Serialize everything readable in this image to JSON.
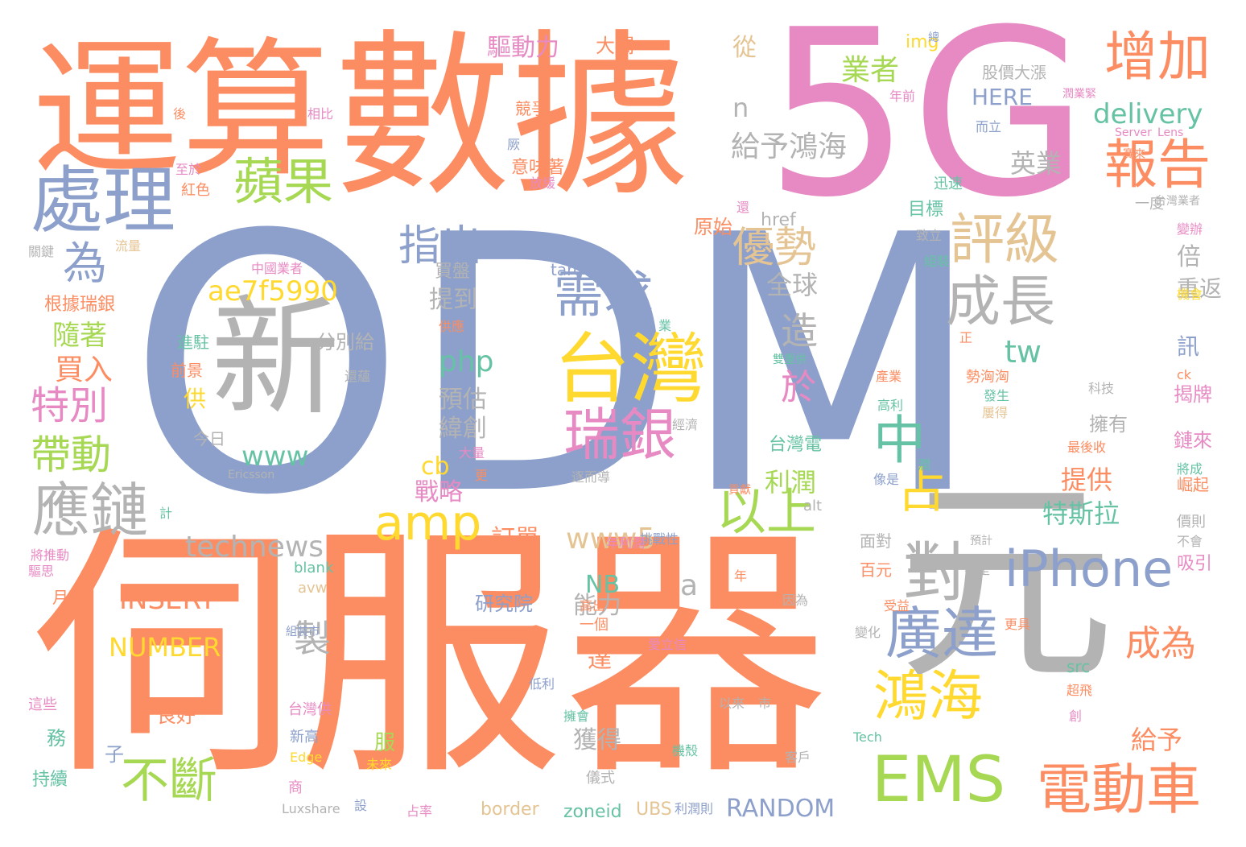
{
  "colors": {
    "background": "#ffffff",
    "orange": "#fc8d62",
    "blue": "#8da0cb",
    "pink": "#e78ac3",
    "green": "#a6d854",
    "yellow": "#ffd92f",
    "tan": "#e5c494",
    "gray": "#b3b3b3",
    "teal": "#66c2a5"
  },
  "words": [
    "ODM",
    "伺服器",
    "5G",
    "數據",
    "運算",
    "元",
    "新",
    "台灣",
    "處理",
    "瑞銀",
    "EMS",
    "電動車",
    "應鏈",
    "評級",
    "對",
    "蘋果",
    "增加",
    "報告",
    "需求",
    "廣達",
    "鴻海",
    "成長",
    "amp",
    "iPhone",
    "中",
    "占",
    "以上",
    "不斷",
    "為",
    "指出",
    "優勢",
    "帶動",
    "特別",
    "technews",
    "給予鴻海",
    "業者",
    "delivery",
    "成為",
    "ae7f5990",
    "www",
    "INSERT",
    "NUMBER",
    "RANDOM",
    "php",
    "www5",
    "造",
    "於",
    "tw",
    "製",
    "a",
    "n",
    "買入",
    "隨著",
    "全球",
    "英業",
    "利潤",
    "提供",
    "特斯拉",
    "驅動力",
    "NB",
    "cb",
    "戰略",
    "訂單",
    "能力",
    "緯創",
    "預估",
    "提到",
    "研究院",
    "達",
    "獲得",
    "給予",
    "倍",
    "重返",
    "訊",
    "揭牌",
    "鏈來",
    "擁有",
    "HERE",
    "股價大漲",
    "從",
    "大關",
    "img",
    "目標",
    "原始",
    "href",
    "target",
    "買盤",
    "分別給",
    "進駐",
    "前景",
    "供",
    "今日",
    "良好",
    "服",
    "子",
    "務",
    "持續",
    "根據瑞銀",
    "月",
    "競爭",
    "意味著",
    "紅色",
    "台灣電",
    "src",
    "border",
    "zoneid",
    "UBS",
    "Luxshare",
    "Tech",
    "blank",
    "avw",
    "alt",
    "百元",
    "面對",
    "一個",
    "儀式",
    "商",
    "新高",
    "台灣供",
    "Edge",
    "後",
    "相比",
    "厥",
    "至於",
    "放緩",
    "流量",
    "關鍵",
    "中國業者",
    "供應",
    "還蘊",
    "不會",
    "更",
    "大量",
    "Ericsson",
    "逐而導",
    "挑戰性",
    "年利潤",
    "年",
    "高出",
    "立訊",
    "低利",
    "擁會",
    "以來",
    "市",
    "客戶",
    "機殼",
    "未來",
    "占率",
    "設",
    "利潤則",
    "創",
    "超飛",
    "更具",
    "受益",
    "變化",
    "因為",
    "愛立信",
    "組裝市",
    "不是",
    "像是",
    "潤",
    "業",
    "發生",
    "經濟",
    "科技",
    "屢得",
    "最後收",
    "產業",
    "高利",
    "勢洶洶",
    "正",
    "雙重供",
    "致立",
    "組裝",
    "一度",
    "迅速",
    "還",
    "Server",
    "Lens",
    "賽來",
    "台灣業者",
    "而立",
    "年前",
    "潤業緊",
    "總",
    "崛起",
    "吸引",
    "價則",
    "機會",
    "變辦",
    "將成",
    "ck",
    "將推動",
    "驅思",
    "計",
    "這些",
    "預計",
    "貢獻",
    "不會"
  ]
}
